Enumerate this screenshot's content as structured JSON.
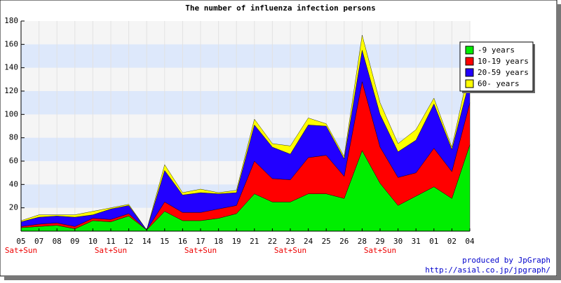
{
  "chart_data": {
    "type": "stacked_area",
    "title": "The number of influenza infection persons",
    "categories": [
      "05",
      "07",
      "08",
      "09",
      "10",
      "11",
      "12",
      "14",
      "15",
      "16",
      "17",
      "18",
      "19",
      "21",
      "22",
      "23",
      "24",
      "25",
      "26",
      "28",
      "29",
      "30",
      "31",
      "01",
      "02",
      "04"
    ],
    "x_sublabels": [
      "Sat+Sun",
      null,
      null,
      null,
      null,
      "Sat+Sun",
      null,
      null,
      null,
      null,
      "Sat+Sun",
      null,
      null,
      null,
      null,
      "Sat+Sun",
      null,
      null,
      null,
      null,
      "Sat+Sun",
      null,
      null,
      null,
      null,
      null
    ],
    "series": [
      {
        "name": "-9 years",
        "color": "#00ee00",
        "values": [
          3,
          4,
          5,
          2,
          9,
          8,
          13,
          1,
          17,
          9,
          9,
          11,
          15,
          32,
          25,
          25,
          32,
          32,
          28,
          69,
          41,
          22,
          30,
          38,
          28,
          74
        ]
      },
      {
        "name": "10-19 years",
        "color": "#ff0000",
        "values": [
          1,
          2,
          2,
          2,
          2,
          2,
          2,
          0,
          8,
          7,
          7,
          8,
          7,
          28,
          20,
          19,
          31,
          33,
          19,
          59,
          31,
          24,
          20,
          33,
          23,
          36
        ]
      },
      {
        "name": "20-59 years",
        "color": "#2200ff",
        "values": [
          4,
          6,
          6,
          8,
          3,
          9,
          7,
          0,
          27,
          15,
          17,
          13,
          11,
          31,
          27,
          22,
          28,
          25,
          15,
          27,
          28,
          22,
          28,
          38,
          19,
          20
        ]
      },
      {
        "name": "60- years",
        "color": "#ffff00",
        "values": [
          1,
          2,
          1,
          2,
          3,
          1,
          1,
          0,
          5,
          2,
          3,
          1,
          2,
          5,
          3,
          7,
          6,
          2,
          2,
          13,
          10,
          7,
          9,
          5,
          2,
          12
        ]
      }
    ],
    "ylim": [
      0,
      180
    ],
    "yticks": [
      20,
      40,
      60,
      80,
      100,
      120,
      140,
      160,
      180
    ],
    "grid": true,
    "legend": "upper right",
    "footer": [
      "produced by JpGraph",
      "http://asial.co.jp/jpgraph/"
    ]
  }
}
